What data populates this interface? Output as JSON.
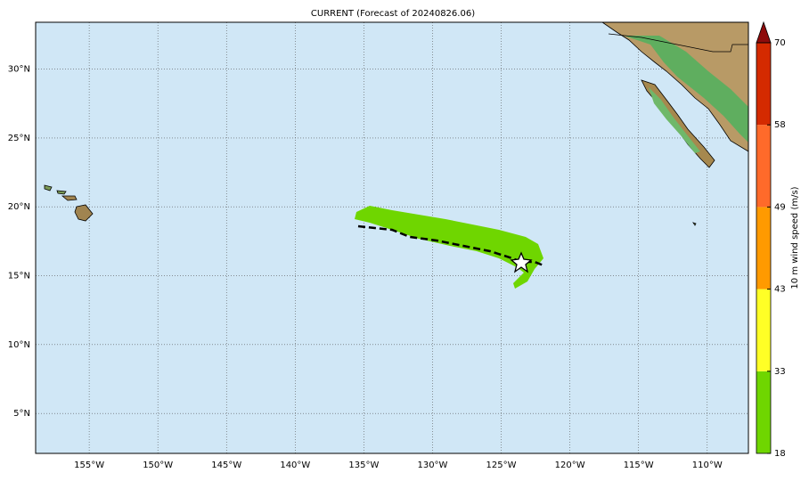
{
  "title": "CURRENT (Forecast of 20240826.06)",
  "map": {
    "lonlim": [
      -158.9,
      -107.0
    ],
    "latlim": [
      2.1,
      33.4
    ],
    "lon_ticks": [
      {
        "value": -155,
        "label": "155°W"
      },
      {
        "value": -150,
        "label": "150°W"
      },
      {
        "value": -145,
        "label": "145°W"
      },
      {
        "value": -140,
        "label": "140°W"
      },
      {
        "value": -135,
        "label": "135°W"
      },
      {
        "value": -130,
        "label": "130°W"
      },
      {
        "value": -125,
        "label": "125°W"
      },
      {
        "value": -120,
        "label": "120°W"
      },
      {
        "value": -115,
        "label": "115°W"
      },
      {
        "value": -110,
        "label": "110°W"
      }
    ],
    "lat_ticks": [
      {
        "value": 5,
        "label": "5°N"
      },
      {
        "value": 10,
        "label": "10°N"
      },
      {
        "value": 15,
        "label": "15°N"
      },
      {
        "value": 20,
        "label": "20°N"
      },
      {
        "value": 25,
        "label": "25°N"
      },
      {
        "value": 30,
        "label": "30°N"
      }
    ]
  },
  "colorbar": {
    "label": "10 m wind speed (m/s)",
    "ticks": [
      18,
      33,
      43,
      49,
      58,
      70
    ],
    "colors": [
      "#6fd600",
      "#ffff26",
      "#ff9a00",
      "#ff6a2a",
      "#d42a00"
    ],
    "extend_color": "#8e0c0c"
  }
}
